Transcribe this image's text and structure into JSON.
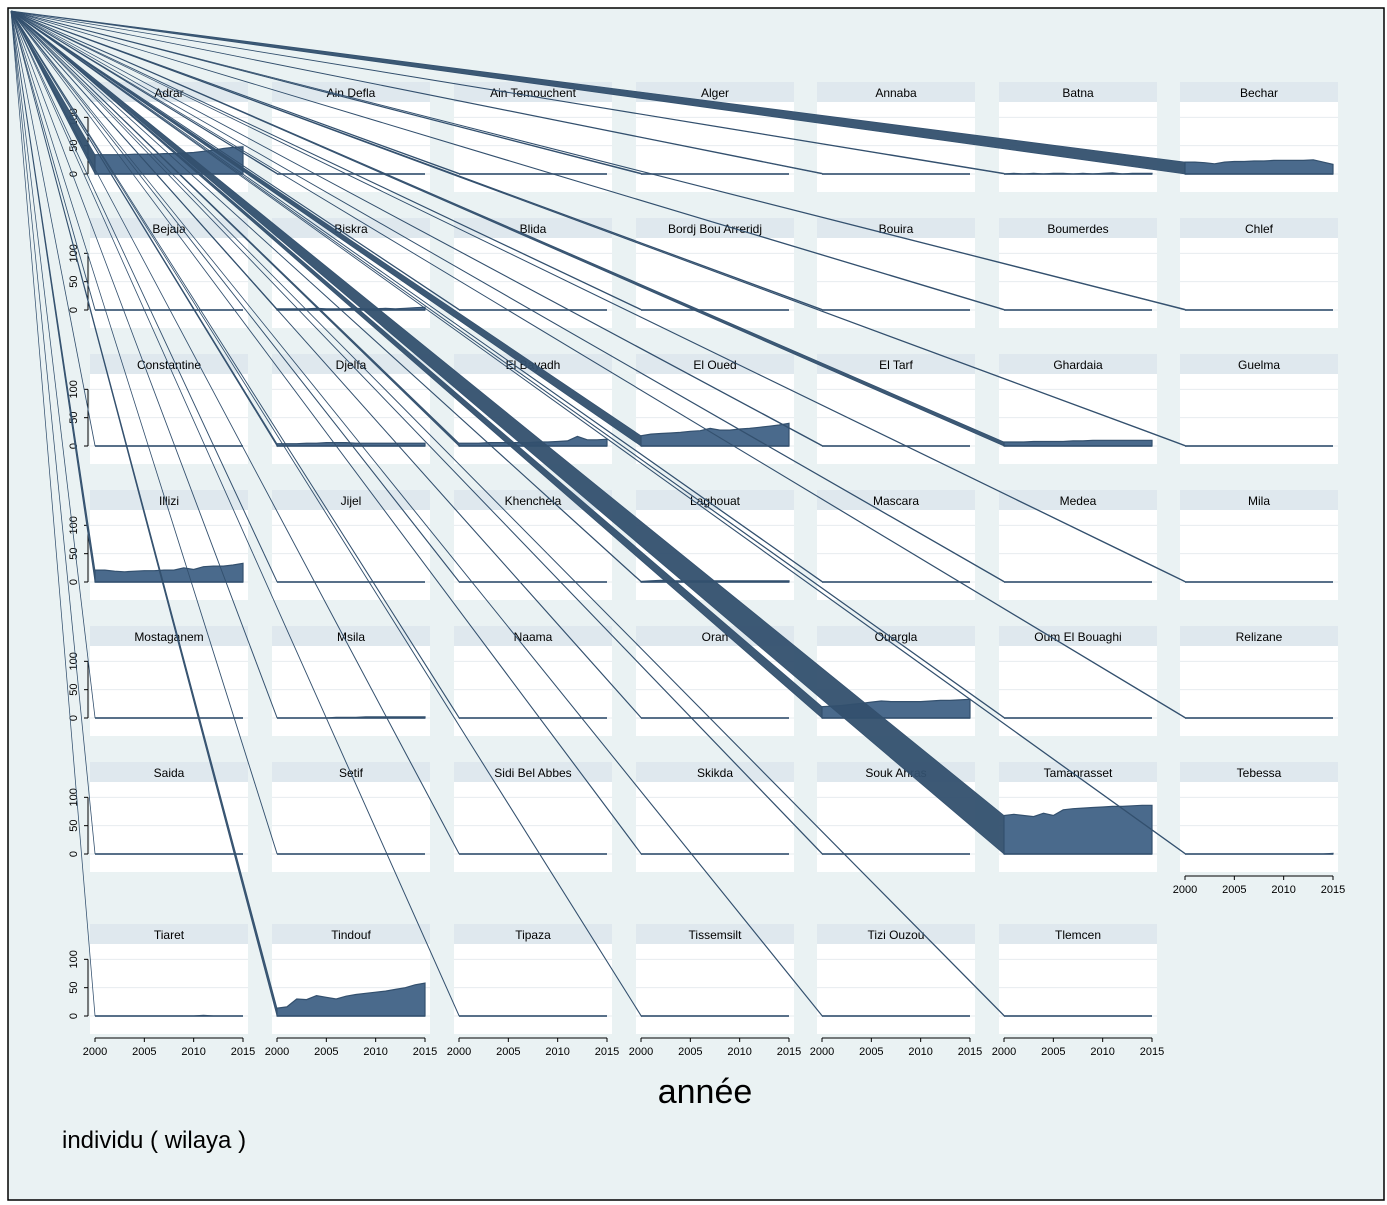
{
  "chart_data": {
    "type": "area",
    "title": "",
    "xlabel": "année",
    "note": "individu  ( wilaya )",
    "x_ticks": [
      2000,
      2005,
      2010,
      2015
    ],
    "y_ticks": [
      0,
      50,
      100
    ],
    "xlim": [
      2000,
      2015
    ],
    "ylim": [
      0,
      120
    ],
    "grid": true,
    "colors": {
      "fill": "#4a6a8c",
      "stroke": "#33506e",
      "outer_bg": "#eaf2f3",
      "plot_bg": "#ffffff",
      "header_bg": "#dfe8ee"
    },
    "panels": [
      {
        "name": "Adrar",
        "values": [
          34,
          34,
          34,
          34,
          35,
          35,
          35,
          36,
          36,
          37,
          38,
          40,
          42,
          45,
          47,
          48
        ]
      },
      {
        "name": "Ain Defla",
        "values": [
          0,
          0,
          0,
          0,
          0,
          0,
          0,
          0,
          0,
          0,
          0,
          0,
          0,
          0,
          0,
          0
        ]
      },
      {
        "name": "Ain Temouchent",
        "values": [
          0,
          0,
          0,
          0,
          0,
          0,
          0,
          0,
          0,
          0,
          0,
          0,
          0,
          0,
          0,
          0
        ]
      },
      {
        "name": "Alger",
        "values": [
          0,
          0,
          0,
          0,
          0,
          0,
          0,
          0,
          0,
          0,
          0,
          0,
          0,
          0,
          0,
          0
        ]
      },
      {
        "name": "Annaba",
        "values": [
          0,
          0,
          0,
          0,
          0,
          0,
          0,
          0,
          0,
          0,
          0,
          0,
          0,
          0,
          0,
          0
        ]
      },
      {
        "name": "Batna",
        "values": [
          0,
          1,
          0,
          1,
          0,
          1,
          1,
          0,
          1,
          0,
          1,
          2,
          0,
          1,
          1,
          1
        ]
      },
      {
        "name": "Bechar",
        "values": [
          21,
          21,
          20,
          18,
          21,
          22,
          22,
          23,
          23,
          24,
          24,
          24,
          24,
          25,
          21,
          17
        ]
      },
      {
        "name": "Bejaia",
        "values": [
          0,
          0,
          0,
          0,
          0,
          0,
          0,
          0,
          0,
          0,
          0,
          0,
          0,
          0,
          0,
          0
        ]
      },
      {
        "name": "Biskra",
        "values": [
          2,
          2,
          2,
          2,
          3,
          2,
          2,
          2,
          3,
          2,
          2,
          3,
          2,
          3,
          4,
          5
        ]
      },
      {
        "name": "Blida",
        "values": [
          0,
          0,
          0,
          0,
          0,
          0,
          0,
          0,
          0,
          0,
          0,
          0,
          0,
          0,
          0,
          0
        ]
      },
      {
        "name": "Bordj Bou Arreridj",
        "values": [
          0,
          0,
          0,
          0,
          0,
          0,
          0,
          0,
          0,
          0,
          0,
          0,
          0,
          0,
          0,
          0
        ]
      },
      {
        "name": "Bouira",
        "values": [
          0,
          0,
          0,
          0,
          0,
          0,
          0,
          0,
          0,
          0,
          0,
          0,
          0,
          0,
          0,
          0
        ]
      },
      {
        "name": "Boumerdes",
        "values": [
          0,
          0,
          0,
          0,
          0,
          0,
          0,
          0,
          0,
          0,
          0,
          0,
          0,
          0,
          0,
          0
        ]
      },
      {
        "name": "Chlef",
        "values": [
          0,
          0,
          0,
          0,
          0,
          0,
          0,
          0,
          0,
          0,
          0,
          0,
          0,
          0,
          0,
          0
        ]
      },
      {
        "name": "Constantine",
        "values": [
          0,
          0,
          0,
          0,
          0,
          0,
          0,
          0,
          0,
          0,
          0,
          0,
          0,
          0,
          0,
          0
        ]
      },
      {
        "name": "Djelfa",
        "values": [
          4,
          4,
          4,
          5,
          5,
          6,
          6,
          6,
          5,
          5,
          5,
          5,
          5,
          5,
          5,
          5
        ]
      },
      {
        "name": "El Bayadh",
        "values": [
          5,
          5,
          5,
          6,
          6,
          6,
          6,
          6,
          7,
          7,
          8,
          9,
          17,
          11,
          11,
          12
        ]
      },
      {
        "name": "El Oued",
        "values": [
          18,
          21,
          22,
          23,
          24,
          26,
          27,
          31,
          28,
          28,
          30,
          31,
          33,
          35,
          37,
          40
        ]
      },
      {
        "name": "El Tarf",
        "values": [
          0,
          0,
          0,
          0,
          0,
          0,
          0,
          0,
          0,
          0,
          0,
          0,
          0,
          0,
          0,
          0
        ]
      },
      {
        "name": "Ghardaia",
        "values": [
          7,
          7,
          7,
          8,
          8,
          8,
          8,
          9,
          9,
          10,
          10,
          10,
          10,
          10,
          10,
          10
        ]
      },
      {
        "name": "Guelma",
        "values": [
          0,
          0,
          0,
          0,
          0,
          0,
          0,
          0,
          0,
          0,
          0,
          0,
          0,
          0,
          0,
          0
        ]
      },
      {
        "name": "Illizi",
        "values": [
          21,
          21,
          19,
          18,
          19,
          20,
          20,
          21,
          21,
          25,
          22,
          27,
          28,
          28,
          30,
          33
        ]
      },
      {
        "name": "Jijel",
        "values": [
          0,
          0,
          0,
          0,
          0,
          0,
          0,
          0,
          0,
          0,
          0,
          0,
          0,
          0,
          0,
          0
        ]
      },
      {
        "name": "Khenchela",
        "values": [
          0,
          0,
          0,
          0,
          0,
          0,
          0,
          0,
          0,
          0,
          0,
          0,
          0,
          0,
          0,
          0
        ]
      },
      {
        "name": "Laghouat",
        "values": [
          1,
          2,
          3,
          2,
          2,
          2,
          2,
          2,
          2,
          2,
          2,
          2,
          2,
          2,
          2,
          2
        ]
      },
      {
        "name": "Mascara",
        "values": [
          0,
          0,
          0,
          0,
          0,
          0,
          0,
          0,
          0,
          0,
          0,
          0,
          0,
          0,
          0,
          0
        ]
      },
      {
        "name": "Medea",
        "values": [
          0,
          0,
          0,
          0,
          0,
          0,
          0,
          0,
          0,
          0,
          0,
          0,
          0,
          0,
          0,
          0
        ]
      },
      {
        "name": "Mila",
        "values": [
          0,
          0,
          0,
          0,
          0,
          0,
          0,
          0,
          0,
          0,
          0,
          0,
          0,
          0,
          0,
          0
        ]
      },
      {
        "name": "Mostaganem",
        "values": [
          0,
          0,
          0,
          0,
          0,
          0,
          0,
          0,
          0,
          0,
          0,
          0,
          0,
          0,
          0,
          0
        ]
      },
      {
        "name": "Msila",
        "values": [
          0,
          0,
          0,
          0,
          0,
          0,
          1,
          1,
          1,
          2,
          2,
          2,
          2,
          2,
          2,
          2
        ]
      },
      {
        "name": "Naama",
        "values": [
          0,
          0,
          0,
          0,
          0,
          0,
          0,
          0,
          0,
          0,
          0,
          0,
          0,
          0,
          0,
          0
        ]
      },
      {
        "name": "Oran",
        "values": [
          0,
          0,
          0,
          0,
          0,
          0,
          0,
          0,
          0,
          0,
          0,
          0,
          0,
          0,
          0,
          0
        ]
      },
      {
        "name": "Ouargla",
        "values": [
          20,
          21,
          22,
          24,
          26,
          28,
          30,
          29,
          29,
          29,
          29,
          30,
          31,
          31,
          32,
          33
        ]
      },
      {
        "name": "Oum El Bouaghi",
        "values": [
          0,
          0,
          0,
          0,
          0,
          0,
          0,
          0,
          0,
          0,
          0,
          0,
          0,
          0,
          0,
          0
        ]
      },
      {
        "name": "Relizane",
        "values": [
          0,
          0,
          0,
          0,
          0,
          0,
          0,
          0,
          0,
          0,
          0,
          0,
          0,
          0,
          0,
          0
        ]
      },
      {
        "name": "Saida",
        "values": [
          0,
          0,
          0,
          0,
          0,
          0,
          0,
          0,
          0,
          0,
          0,
          0,
          0,
          0,
          0,
          0
        ]
      },
      {
        "name": "Setif",
        "values": [
          0,
          0,
          0,
          0,
          0,
          0,
          0,
          0,
          0,
          0,
          0,
          0,
          0,
          0,
          0,
          0
        ]
      },
      {
        "name": "Sidi Bel Abbes",
        "values": [
          0,
          0,
          0,
          0,
          0,
          0,
          0,
          0,
          0,
          0,
          0,
          0,
          0,
          0,
          0,
          0
        ]
      },
      {
        "name": "Skikda",
        "values": [
          0,
          0,
          0,
          0,
          0,
          0,
          0,
          0,
          0,
          0,
          0,
          0,
          0,
          0,
          0,
          0
        ]
      },
      {
        "name": "Souk Ahras",
        "values": [
          0,
          0,
          0,
          0,
          0,
          0,
          0,
          0,
          0,
          0,
          0,
          0,
          0,
          0,
          0,
          0
        ]
      },
      {
        "name": "Tamanrasset",
        "values": [
          68,
          70,
          68,
          66,
          72,
          68,
          78,
          80,
          81,
          82,
          83,
          84,
          84,
          85,
          86,
          86
        ]
      },
      {
        "name": "Tebessa",
        "values": [
          0,
          0,
          0,
          0,
          0,
          0,
          0,
          0,
          0,
          0,
          0,
          0,
          0,
          0,
          0,
          1
        ]
      },
      {
        "name": "Tiaret",
        "values": [
          0,
          0,
          0,
          0,
          0,
          0,
          0,
          0,
          0,
          0,
          0,
          1,
          0,
          0,
          0,
          0
        ]
      },
      {
        "name": "Tindouf",
        "values": [
          14,
          16,
          30,
          29,
          36,
          33,
          30,
          35,
          38,
          40,
          42,
          44,
          47,
          50,
          55,
          58
        ]
      },
      {
        "name": "Tipaza",
        "values": [
          0,
          0,
          0,
          0,
          0,
          0,
          0,
          0,
          0,
          0,
          0,
          0,
          0,
          0,
          0,
          0
        ]
      },
      {
        "name": "Tissemsilt",
        "values": [
          0,
          0,
          0,
          0,
          0,
          0,
          0,
          0,
          0,
          0,
          0,
          0,
          0,
          0,
          0,
          0
        ]
      },
      {
        "name": "Tizi Ouzou",
        "values": [
          0,
          0,
          0,
          0,
          0,
          0,
          0,
          0,
          0,
          0,
          0,
          0,
          0,
          0,
          0,
          0
        ]
      },
      {
        "name": "Tlemcen",
        "values": [
          0,
          0,
          0,
          0,
          0,
          0,
          0,
          0,
          0,
          0,
          0,
          0,
          0,
          0,
          0,
          0
        ]
      }
    ]
  }
}
